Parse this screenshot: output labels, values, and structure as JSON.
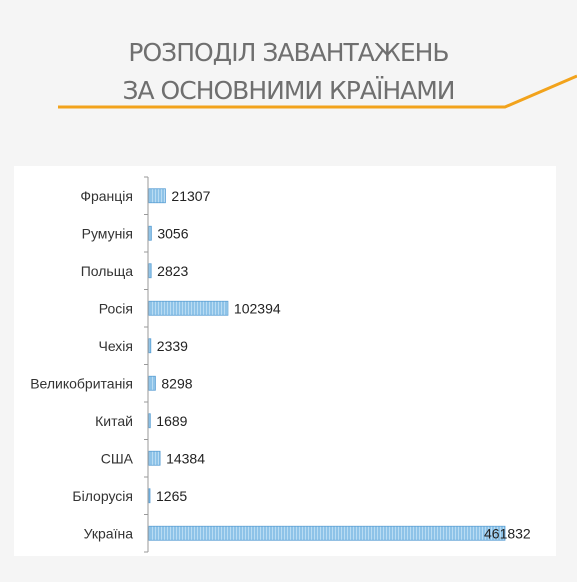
{
  "header": {
    "title_line1": "РОЗПОДІЛ ЗАВАНТАЖЕНЬ",
    "title_line2": "ЗА ОСНОВНИМИ КРАЇНАМИ"
  },
  "colors": {
    "accent": "#f2a31c",
    "bar_fill": "#8ec3e8",
    "bar_stroke": "#5a9fd4",
    "title_text": "#6f6f6f",
    "background": "#f5f5f5"
  },
  "chart_data": {
    "type": "bar",
    "orientation": "horizontal",
    "title": "",
    "xlabel": "",
    "ylabel": "",
    "categories": [
      "Франція",
      "Румунія",
      "Польща",
      "Росія",
      "Чехія",
      "Великобританія",
      "Китай",
      "США",
      "Білорусія",
      "Україна"
    ],
    "values": [
      21307,
      3056,
      2823,
      102394,
      2339,
      8298,
      1689,
      14384,
      1265,
      461832
    ],
    "xlim": [
      0,
      461832
    ],
    "grid": false,
    "data_labels": true
  }
}
